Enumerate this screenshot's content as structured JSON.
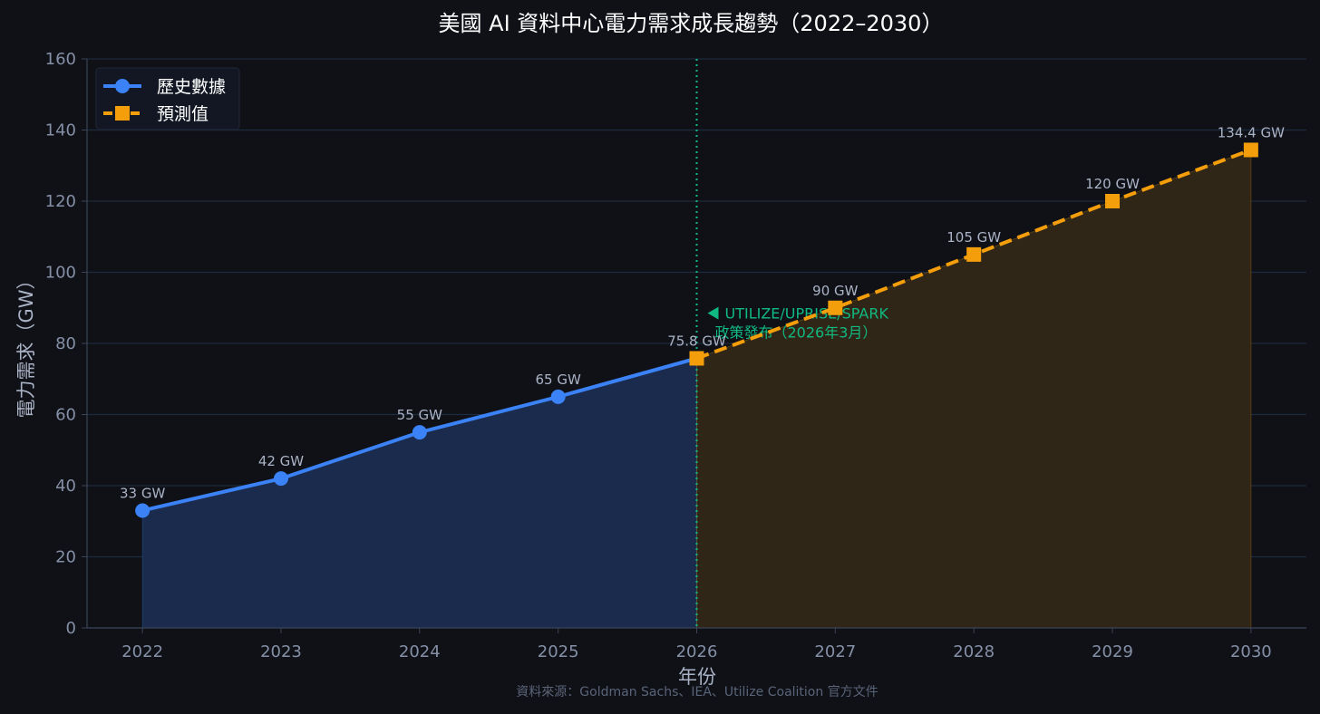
{
  "chart_data": {
    "type": "line",
    "title": "美國 AI 資料中心電力需求成長趨勢（2022–2030）",
    "xlabel": "年份",
    "ylabel": "電力需求（GW）",
    "xlim": [
      2021.6,
      2030.4
    ],
    "ylim": [
      0,
      160
    ],
    "yticks": [
      0,
      20,
      40,
      60,
      80,
      100,
      120,
      140,
      160
    ],
    "xticks": [
      2022,
      2023,
      2024,
      2025,
      2026,
      2027,
      2028,
      2029,
      2030
    ],
    "grid": true,
    "legend_position": "top-left",
    "series": [
      {
        "name": "歷史數據",
        "style": "solid",
        "marker": "circle",
        "color": "#3b82f6",
        "fill": "#1b2b4d",
        "x": [
          2022,
          2023,
          2024,
          2025,
          2026
        ],
        "y": [
          33,
          42,
          55,
          65,
          75.8
        ],
        "labels": [
          "33 GW",
          "42 GW",
          "55 GW",
          "65 GW",
          "75.8 GW"
        ]
      },
      {
        "name": "預測值",
        "style": "dashed",
        "marker": "square",
        "color": "#f59e0b",
        "fill": "#302617",
        "x": [
          2026,
          2027,
          2028,
          2029,
          2030
        ],
        "y": [
          75.8,
          90,
          105,
          120,
          134.4
        ],
        "labels": [
          "",
          "90 GW",
          "105 GW",
          "120 GW",
          "134.4 GW"
        ]
      }
    ],
    "vline": {
      "x": 2026,
      "color": "#10b981",
      "text_line1": "UTILIZE/UPRISE/SPARK",
      "text_line2": "政策發布（2026年3月）"
    },
    "source": "資料來源：Goldman Sachs、IEA、Utilize Coalition 官方文件"
  }
}
